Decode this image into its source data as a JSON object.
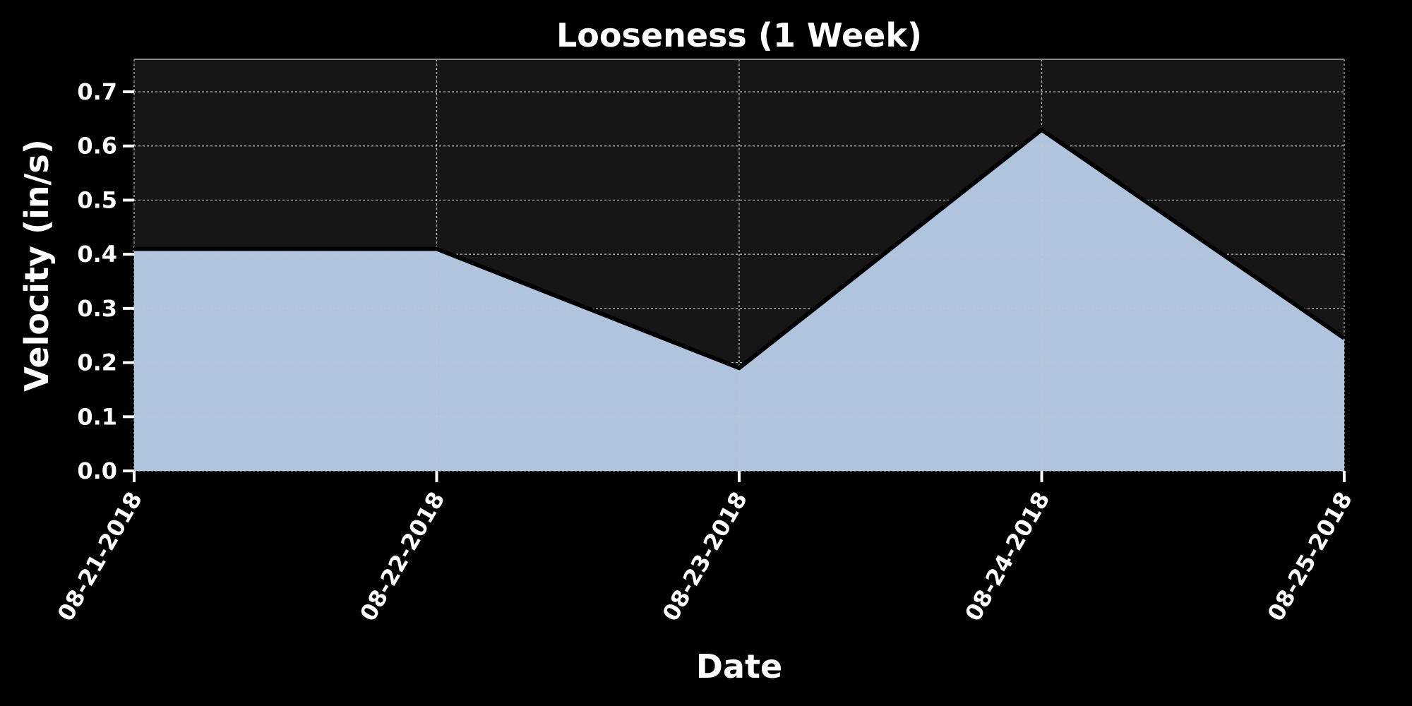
{
  "chart_data": {
    "type": "area",
    "title": "Looseness (1 Week)",
    "xlabel": "Date",
    "ylabel": "Velocity (in/s)",
    "x": [
      "08-21-2018",
      "08-22-2018",
      "08-23-2018",
      "08-24-2018",
      "08-25-2018"
    ],
    "series": [
      {
        "values": [
          0.41,
          0.41,
          0.19,
          0.63,
          0.245
        ]
      }
    ],
    "ylim": [
      0,
      0.76
    ],
    "yticks": [
      "0.0",
      "0.1",
      "0.2",
      "0.3",
      "0.4",
      "0.5",
      "0.6",
      "0.7"
    ],
    "grid": true,
    "colors": {
      "background": "#000000",
      "plot_background": "#161616",
      "fill": "#b0c4de",
      "line": "#000000",
      "grid": "#cccccc",
      "text": "#ffffff"
    }
  }
}
